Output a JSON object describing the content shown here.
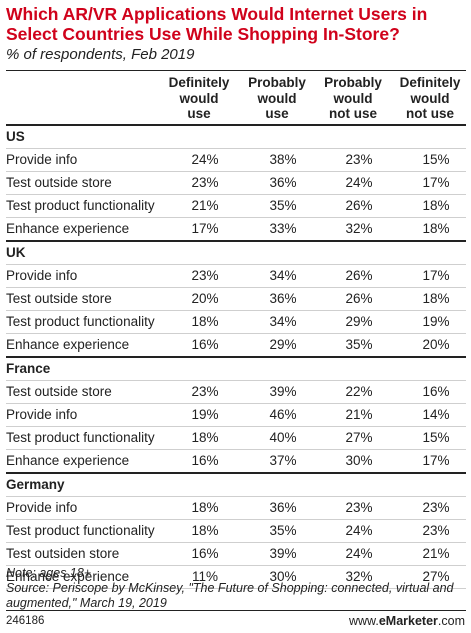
{
  "chart_data": {
    "type": "table",
    "title": "Which AR/VR Applications Would Internet Users in Select Countries Use While Shopping In-Store?",
    "subtitle": "% of respondents, Feb 2019",
    "columns": [
      "Definitely\nwould\nuse",
      "Probably\nwould\nuse",
      "Probably\nwould\nnot use",
      "Definitely\nwould\nnot use"
    ],
    "groups": [
      {
        "name": "US",
        "rows": [
          {
            "label": "Provide info",
            "values": [
              "24%",
              "38%",
              "23%",
              "15%"
            ]
          },
          {
            "label": "Test outside store",
            "values": [
              "23%",
              "36%",
              "24%",
              "17%"
            ]
          },
          {
            "label": "Test product functionality",
            "values": [
              "21%",
              "35%",
              "26%",
              "18%"
            ]
          },
          {
            "label": "Enhance experience",
            "values": [
              "17%",
              "33%",
              "32%",
              "18%"
            ]
          }
        ]
      },
      {
        "name": "UK",
        "rows": [
          {
            "label": "Provide info",
            "values": [
              "23%",
              "34%",
              "26%",
              "17%"
            ]
          },
          {
            "label": "Test outside store",
            "values": [
              "20%",
              "36%",
              "26%",
              "18%"
            ]
          },
          {
            "label": "Test product functionality",
            "values": [
              "18%",
              "34%",
              "29%",
              "19%"
            ]
          },
          {
            "label": "Enhance experience",
            "values": [
              "16%",
              "29%",
              "35%",
              "20%"
            ]
          }
        ]
      },
      {
        "name": "France",
        "rows": [
          {
            "label": "Test outside store",
            "values": [
              "23%",
              "39%",
              "22%",
              "16%"
            ]
          },
          {
            "label": "Provide info",
            "values": [
              "19%",
              "46%",
              "21%",
              "14%"
            ]
          },
          {
            "label": "Test product functionality",
            "values": [
              "18%",
              "40%",
              "27%",
              "15%"
            ]
          },
          {
            "label": "Enhance experience",
            "values": [
              "16%",
              "37%",
              "30%",
              "17%"
            ]
          }
        ]
      },
      {
        "name": "Germany",
        "rows": [
          {
            "label": "Provide info",
            "values": [
              "18%",
              "36%",
              "23%",
              "23%"
            ]
          },
          {
            "label": "Test product functionality",
            "values": [
              "18%",
              "35%",
              "24%",
              "23%"
            ]
          },
          {
            "label": "Test outsiden store",
            "values": [
              "16%",
              "39%",
              "24%",
              "21%"
            ]
          },
          {
            "label": "Enhance experience",
            "values": [
              "11%",
              "30%",
              "32%",
              "27%"
            ]
          }
        ]
      }
    ]
  },
  "footnote": {
    "note": "Note: ages 18+",
    "source": "Source: Periscope by McKinsey, \"The Future of Shopping: connected, virtual and augmented,\" March 19, 2019"
  },
  "footer": {
    "chart_id": "246186",
    "brand_prefix": "www.",
    "brand_name": "eMarketer",
    "brand_suffix": ".com"
  }
}
